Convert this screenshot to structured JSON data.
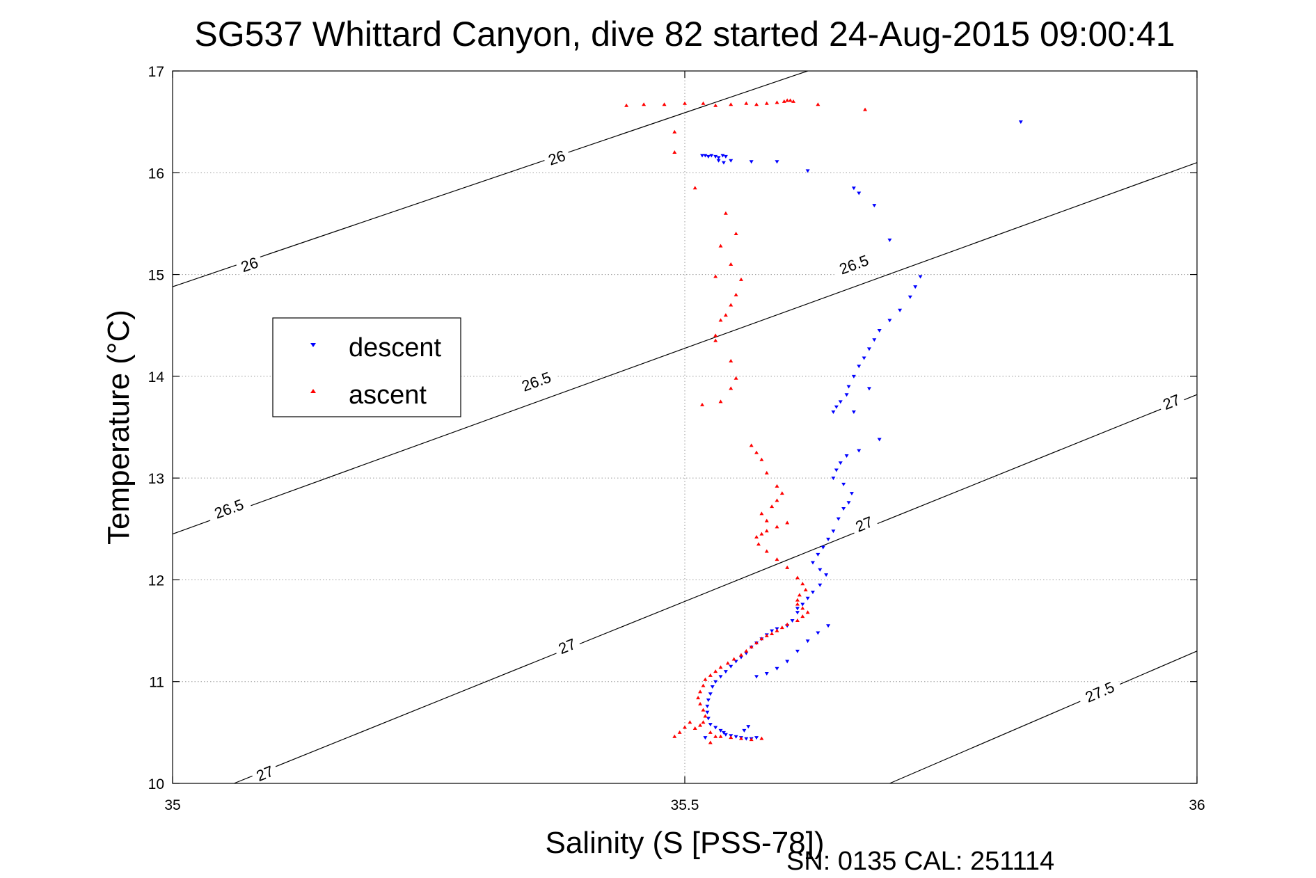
{
  "chart_data": {
    "type": "scatter",
    "title": "SG537 Whittard Canyon, dive 82 started 24-Aug-2015 09:00:41",
    "xlabel": "Salinity (S [PSS-78])",
    "ylabel": "Temperature (°C)",
    "xlim": [
      35,
      36
    ],
    "ylim": [
      10,
      17
    ],
    "x_ticks": [
      35,
      35.5,
      36
    ],
    "x_tick_labels": [
      "35",
      "35.5",
      "36"
    ],
    "y_ticks": [
      10,
      11,
      12,
      13,
      14,
      15,
      16,
      17
    ],
    "y_tick_labels": [
      "10",
      "11",
      "12",
      "13",
      "14",
      "15",
      "16",
      "17"
    ],
    "grid": true,
    "legend_position": "center-left",
    "footer": "SN: 0135  CAL: 251114",
    "colors": {
      "descent": "#0000ff",
      "ascent": "#ff0000",
      "contour": "#000000",
      "grid": "#9a9a9a"
    },
    "density_contours": [
      {
        "level": "26",
        "points": [
          [
            35,
            14.88
          ],
          [
            35.62,
            17
          ]
        ],
        "label_positions": [
          [
            35.075,
            15.1
          ],
          [
            35.375,
            16.15
          ]
        ]
      },
      {
        "level": "26.5",
        "points": [
          [
            35,
            12.45
          ],
          [
            36,
            16.1
          ]
        ],
        "label_positions": [
          [
            35.055,
            12.7
          ],
          [
            35.355,
            13.95
          ],
          [
            35.665,
            15.1
          ]
        ]
      },
      {
        "level": "27",
        "points": [
          [
            35.06,
            10
          ],
          [
            36,
            13.82
          ]
        ],
        "label_positions": [
          [
            35.09,
            10.1
          ],
          [
            35.385,
            11.35
          ],
          [
            35.675,
            12.55
          ],
          [
            35.975,
            13.75
          ]
        ]
      },
      {
        "level": "27.5",
        "points": [
          [
            35.7,
            10
          ],
          [
            36,
            11.3
          ]
        ],
        "label_positions": [
          [
            35.905,
            10.9
          ]
        ]
      }
    ],
    "series": [
      {
        "name": "descent",
        "marker": "triangle-down",
        "points": [
          [
            35.828,
            16.5
          ],
          [
            35.517,
            16.17
          ],
          [
            35.52,
            16.17
          ],
          [
            35.523,
            16.16
          ],
          [
            35.526,
            16.17
          ],
          [
            35.53,
            16.16
          ],
          [
            35.533,
            16.15
          ],
          [
            35.537,
            16.17
          ],
          [
            35.54,
            16.16
          ],
          [
            35.533,
            16.12
          ],
          [
            35.538,
            16.1
          ],
          [
            35.545,
            16.12
          ],
          [
            35.565,
            16.11
          ],
          [
            35.59,
            16.11
          ],
          [
            35.62,
            16.02
          ],
          [
            35.665,
            15.85
          ],
          [
            35.67,
            15.8
          ],
          [
            35.685,
            15.68
          ],
          [
            35.7,
            15.34
          ],
          [
            35.73,
            14.98
          ],
          [
            35.725,
            14.88
          ],
          [
            35.72,
            14.78
          ],
          [
            35.71,
            14.65
          ],
          [
            35.7,
            14.55
          ],
          [
            35.69,
            14.45
          ],
          [
            35.685,
            14.36
          ],
          [
            35.68,
            14.27
          ],
          [
            35.675,
            14.18
          ],
          [
            35.67,
            14.1
          ],
          [
            35.665,
            14.0
          ],
          [
            35.66,
            13.9
          ],
          [
            35.658,
            13.82
          ],
          [
            35.652,
            13.75
          ],
          [
            35.648,
            13.7
          ],
          [
            35.645,
            13.65
          ],
          [
            35.665,
            13.65
          ],
          [
            35.68,
            13.88
          ],
          [
            35.69,
            13.38
          ],
          [
            35.67,
            13.27
          ],
          [
            35.658,
            13.22
          ],
          [
            35.652,
            13.15
          ],
          [
            35.648,
            13.08
          ],
          [
            35.645,
            13.0
          ],
          [
            35.655,
            12.94
          ],
          [
            35.663,
            12.85
          ],
          [
            35.66,
            12.76
          ],
          [
            35.655,
            12.7
          ],
          [
            35.65,
            12.6
          ],
          [
            35.645,
            12.48
          ],
          [
            35.64,
            12.4
          ],
          [
            35.635,
            12.32
          ],
          [
            35.63,
            12.25
          ],
          [
            35.625,
            12.17
          ],
          [
            35.632,
            12.1
          ],
          [
            35.638,
            12.05
          ],
          [
            35.632,
            11.95
          ],
          [
            35.625,
            11.88
          ],
          [
            35.62,
            11.82
          ],
          [
            35.615,
            11.76
          ],
          [
            35.61,
            11.72
          ],
          [
            35.61,
            11.68
          ],
          [
            35.605,
            11.6
          ],
          [
            35.6,
            11.55
          ],
          [
            35.59,
            11.52
          ],
          [
            35.585,
            11.5
          ],
          [
            35.58,
            11.46
          ],
          [
            35.575,
            11.42
          ],
          [
            35.57,
            11.38
          ],
          [
            35.565,
            11.34
          ],
          [
            35.56,
            11.28
          ],
          [
            35.555,
            11.24
          ],
          [
            35.55,
            11.2
          ],
          [
            35.545,
            11.15
          ],
          [
            35.54,
            11.1
          ],
          [
            35.535,
            11.05
          ],
          [
            35.53,
            11.0
          ],
          [
            35.527,
            10.95
          ],
          [
            35.525,
            10.88
          ],
          [
            35.523,
            10.82
          ],
          [
            35.522,
            10.76
          ],
          [
            35.522,
            10.7
          ],
          [
            35.523,
            10.64
          ],
          [
            35.525,
            10.58
          ],
          [
            35.53,
            10.55
          ],
          [
            35.535,
            10.52
          ],
          [
            35.538,
            10.5
          ],
          [
            35.54,
            10.48
          ],
          [
            35.545,
            10.47
          ],
          [
            35.55,
            10.46
          ],
          [
            35.555,
            10.45
          ],
          [
            35.56,
            10.44
          ],
          [
            35.565,
            10.44
          ],
          [
            35.57,
            10.45
          ],
          [
            35.562,
            10.56
          ],
          [
            35.558,
            10.52
          ],
          [
            35.52,
            10.45
          ],
          [
            35.57,
            11.05
          ],
          [
            35.58,
            11.08
          ],
          [
            35.59,
            11.13
          ],
          [
            35.6,
            11.2
          ],
          [
            35.61,
            11.3
          ],
          [
            35.62,
            11.4
          ],
          [
            35.63,
            11.48
          ],
          [
            35.64,
            11.55
          ]
        ]
      },
      {
        "name": "ascent",
        "marker": "triangle-up",
        "points": [
          [
            35.443,
            16.66
          ],
          [
            35.46,
            16.67
          ],
          [
            35.48,
            16.67
          ],
          [
            35.5,
            16.68
          ],
          [
            35.518,
            16.68
          ],
          [
            35.53,
            16.66
          ],
          [
            35.545,
            16.67
          ],
          [
            35.56,
            16.68
          ],
          [
            35.57,
            16.67
          ],
          [
            35.58,
            16.68
          ],
          [
            35.59,
            16.69
          ],
          [
            35.597,
            16.7
          ],
          [
            35.6,
            16.71
          ],
          [
            35.603,
            16.71
          ],
          [
            35.606,
            16.7
          ],
          [
            35.63,
            16.67
          ],
          [
            35.676,
            16.62
          ],
          [
            35.49,
            16.4
          ],
          [
            35.49,
            16.2
          ],
          [
            35.51,
            15.85
          ],
          [
            35.54,
            15.6
          ],
          [
            35.535,
            15.28
          ],
          [
            35.55,
            15.4
          ],
          [
            35.545,
            15.1
          ],
          [
            35.53,
            14.98
          ],
          [
            35.555,
            14.95
          ],
          [
            35.55,
            14.8
          ],
          [
            35.545,
            14.7
          ],
          [
            35.54,
            14.6
          ],
          [
            35.535,
            14.55
          ],
          [
            35.53,
            14.4
          ],
          [
            35.53,
            14.35
          ],
          [
            35.545,
            14.15
          ],
          [
            35.55,
            13.98
          ],
          [
            35.545,
            13.88
          ],
          [
            35.535,
            13.75
          ],
          [
            35.517,
            13.72
          ],
          [
            35.565,
            13.32
          ],
          [
            35.57,
            13.25
          ],
          [
            35.575,
            13.18
          ],
          [
            35.58,
            13.05
          ],
          [
            35.59,
            12.92
          ],
          [
            35.595,
            12.85
          ],
          [
            35.59,
            12.78
          ],
          [
            35.585,
            12.72
          ],
          [
            35.575,
            12.65
          ],
          [
            35.58,
            12.58
          ],
          [
            35.6,
            12.56
          ],
          [
            35.59,
            12.52
          ],
          [
            35.58,
            12.48
          ],
          [
            35.575,
            12.45
          ],
          [
            35.57,
            12.42
          ],
          [
            35.572,
            12.35
          ],
          [
            35.58,
            12.28
          ],
          [
            35.59,
            12.2
          ],
          [
            35.6,
            12.12
          ],
          [
            35.61,
            12.02
          ],
          [
            35.615,
            11.96
          ],
          [
            35.618,
            11.9
          ],
          [
            35.612,
            11.85
          ],
          [
            35.61,
            11.8
          ],
          [
            35.61,
            11.76
          ],
          [
            35.615,
            11.72
          ],
          [
            35.62,
            11.68
          ],
          [
            35.615,
            11.64
          ],
          [
            35.61,
            11.6
          ],
          [
            35.6,
            11.56
          ],
          [
            35.595,
            11.53
          ],
          [
            35.59,
            11.5
          ],
          [
            35.585,
            11.47
          ],
          [
            35.58,
            11.45
          ],
          [
            35.575,
            11.42
          ],
          [
            35.57,
            11.38
          ],
          [
            35.565,
            11.34
          ],
          [
            35.56,
            11.3
          ],
          [
            35.555,
            11.26
          ],
          [
            35.548,
            11.22
          ],
          [
            35.542,
            11.18
          ],
          [
            35.535,
            11.14
          ],
          [
            35.53,
            11.1
          ],
          [
            35.525,
            11.06
          ],
          [
            35.52,
            11.02
          ],
          [
            35.518,
            10.96
          ],
          [
            35.515,
            10.9
          ],
          [
            35.513,
            10.84
          ],
          [
            35.515,
            10.78
          ],
          [
            35.518,
            10.72
          ],
          [
            35.52,
            10.66
          ],
          [
            35.518,
            10.6
          ],
          [
            35.515,
            10.57
          ],
          [
            35.51,
            10.54
          ],
          [
            35.525,
            10.5
          ],
          [
            35.535,
            10.46
          ],
          [
            35.545,
            10.45
          ],
          [
            35.555,
            10.44
          ],
          [
            35.565,
            10.43
          ],
          [
            35.575,
            10.44
          ],
          [
            35.53,
            10.46
          ],
          [
            35.505,
            10.6
          ],
          [
            35.5,
            10.55
          ],
          [
            35.495,
            10.5
          ],
          [
            35.49,
            10.46
          ],
          [
            35.525,
            10.4
          ]
        ]
      }
    ]
  }
}
